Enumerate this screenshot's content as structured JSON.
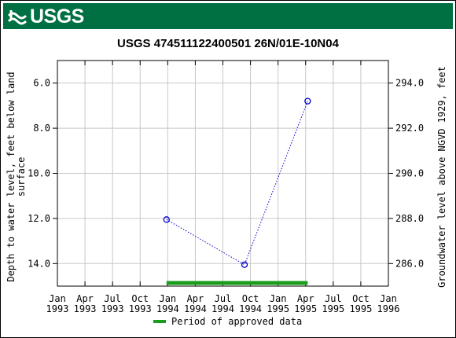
{
  "banner": {
    "logo_text": "USGS",
    "color": "#006f41"
  },
  "chart_data": {
    "type": "scatter",
    "title": "USGS 474511122400501 26N/01E-10N04",
    "ylabel_left": [
      "Depth to water level, feet below land",
      "surface"
    ],
    "ylabel_right": "Groundwater level above NGVD 1929, feet",
    "left_axis": {
      "min": 5.0,
      "max": 15.0,
      "inverted": true,
      "ticks": [
        6.0,
        8.0,
        10.0,
        12.0,
        14.0
      ],
      "tick_labels": [
        "6.0",
        "8.0",
        "10.0",
        "12.0",
        "14.0"
      ]
    },
    "right_axis": {
      "ticks": [
        294.0,
        292.0,
        290.0,
        288.0,
        286.0
      ],
      "tick_labels": [
        "294.0",
        "292.0",
        "290.0",
        "288.0",
        "286.0"
      ],
      "offset": 300.0
    },
    "x_ticks": [
      {
        "line1": "Jan",
        "line2": "1993"
      },
      {
        "line1": "Apr",
        "line2": "1993"
      },
      {
        "line1": "Jul",
        "line2": "1993"
      },
      {
        "line1": "Oct",
        "line2": "1993"
      },
      {
        "line1": "Jan",
        "line2": "1994"
      },
      {
        "line1": "Apr",
        "line2": "1994"
      },
      {
        "line1": "Jul",
        "line2": "1994"
      },
      {
        "line1": "Oct",
        "line2": "1994"
      },
      {
        "line1": "Jan",
        "line2": "1995"
      },
      {
        "line1": "Apr",
        "line2": "1995"
      },
      {
        "line1": "Jul",
        "line2": "1995"
      },
      {
        "line1": "Oct",
        "line2": "1995"
      },
      {
        "line1": "Jan",
        "line2": "1996"
      }
    ],
    "x_range": [
      "1993-01-01",
      "1996-01-01"
    ],
    "series": [
      {
        "points": [
          {
            "date": "1993-12-28",
            "depth": 12.05
          },
          {
            "date": "1994-09-12",
            "depth": 14.05
          },
          {
            "date": "1995-04-09",
            "depth": 6.8
          }
        ],
        "color": "#0000cc",
        "line": "dotted",
        "marker": "open-circle"
      }
    ],
    "approved_period": {
      "start": "1993-12-28",
      "end": "1995-04-09",
      "color": "#1a9d1a"
    },
    "legend": {
      "label": "Period of approved data",
      "placement": "bottom"
    },
    "grid": true
  }
}
